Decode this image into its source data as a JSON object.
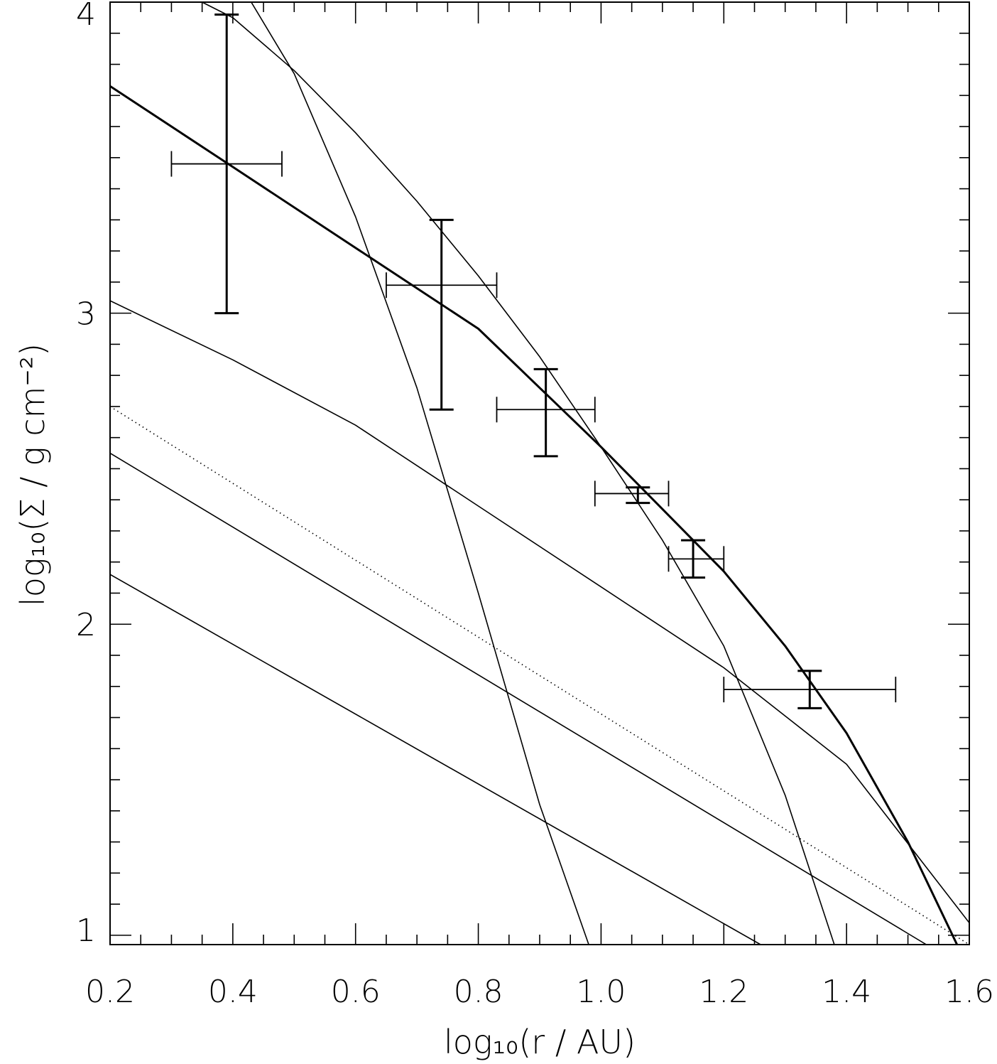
{
  "chart_data": {
    "type": "line",
    "xlabel": "log₁₀(r / AU)",
    "ylabel": "log₁₀(Σ / g cm⁻²)",
    "xlim": [
      0.2,
      1.6
    ],
    "ylim": [
      0.97,
      4.0
    ],
    "x_ticks": [
      0.2,
      0.4,
      0.6,
      0.8,
      1.0,
      1.2,
      1.4,
      1.6
    ],
    "x_tick_labels": [
      "0.2",
      "0.4",
      "0.6",
      "0.8",
      "1.0",
      "1.2",
      "1.4",
      "1.6"
    ],
    "y_ticks": [
      1,
      2,
      3,
      4
    ],
    "y_tick_labels": [
      "1",
      "2",
      "3",
      "4"
    ],
    "grid": false,
    "legend": "none",
    "data_points": [
      {
        "x": 0.39,
        "y": 3.48,
        "xerr": [
          0.3,
          0.48
        ],
        "yerr": [
          3.0,
          3.96
        ]
      },
      {
        "x": 0.74,
        "y": 3.09,
        "xerr": [
          0.65,
          0.83
        ],
        "yerr": [
          2.69,
          3.3
        ]
      },
      {
        "x": 0.91,
        "y": 2.69,
        "xerr": [
          0.83,
          0.99
        ],
        "yerr": [
          2.54,
          2.82
        ]
      },
      {
        "x": 1.06,
        "y": 2.42,
        "xerr": [
          0.99,
          1.11
        ],
        "yerr": [
          2.39,
          2.44
        ]
      },
      {
        "x": 1.15,
        "y": 2.21,
        "xerr": [
          1.11,
          1.2
        ],
        "yerr": [
          2.15,
          2.27
        ]
      },
      {
        "x": 1.34,
        "y": 1.79,
        "xerr": [
          1.2,
          1.48
        ],
        "yerr": [
          1.73,
          1.85
        ]
      }
    ],
    "series": [
      {
        "style": "thick",
        "x": [
          0.2,
          0.4,
          0.6,
          0.8,
          1.0,
          1.1,
          1.2,
          1.3,
          1.4,
          1.5,
          1.58
        ],
        "y": [
          3.73,
          3.47,
          3.21,
          2.95,
          2.57,
          2.37,
          2.17,
          1.93,
          1.65,
          1.3,
          0.97
        ]
      },
      {
        "style": "thin",
        "x": [
          0.35,
          0.4,
          0.5,
          0.6,
          0.7,
          0.8,
          0.9,
          1.0,
          1.1,
          1.2,
          1.3,
          1.38
        ],
        "y": [
          4.0,
          3.95,
          3.78,
          3.58,
          3.36,
          3.12,
          2.86,
          2.57,
          2.27,
          1.93,
          1.45,
          0.97
        ]
      },
      {
        "style": "thin",
        "x": [
          0.43,
          0.5,
          0.6,
          0.7,
          0.8,
          0.9,
          0.98
        ],
        "y": [
          4.0,
          3.77,
          3.31,
          2.76,
          2.1,
          1.42,
          0.97
        ]
      },
      {
        "style": "thin",
        "x": [
          0.2,
          0.4,
          0.6,
          0.8,
          1.0,
          1.2,
          1.4,
          1.6
        ],
        "y": [
          3.04,
          2.85,
          2.64,
          2.38,
          2.12,
          1.86,
          1.55,
          1.04
        ]
      },
      {
        "style": "dotted",
        "x": [
          0.2,
          1.6
        ],
        "y": [
          2.7,
          0.97
        ]
      },
      {
        "style": "thin",
        "x": [
          0.2,
          1.53
        ],
        "y": [
          2.55,
          0.97
        ]
      },
      {
        "style": "thin",
        "x": [
          0.2,
          1.26
        ],
        "y": [
          2.16,
          0.97
        ]
      }
    ]
  }
}
